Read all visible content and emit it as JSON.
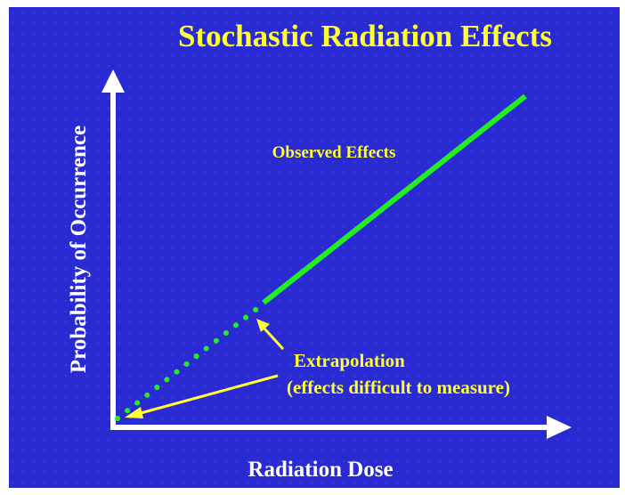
{
  "title": "Stochastic Radiation Effects",
  "y_axis_label": "Probability of Occurrence",
  "x_axis_label": "Radiation Dose",
  "annotations": {
    "observed": "Observed Effects",
    "extrapolation": "Extrapolation",
    "extrapolation_note": "(effects difficult to measure)"
  }
}
